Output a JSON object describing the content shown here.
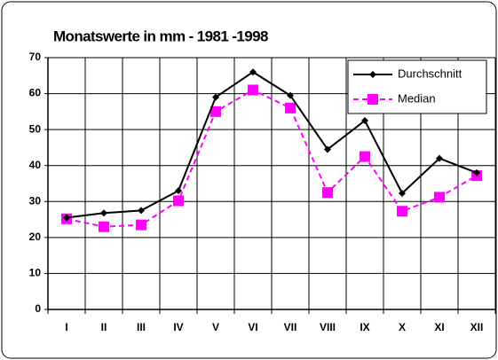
{
  "chart_data": {
    "type": "line",
    "title": "Monatswerte in mm - 1981 -1998",
    "categories": [
      "I",
      "II",
      "III",
      "IV",
      "V",
      "VI",
      "VII",
      "VIII",
      "IX",
      "X",
      "XI",
      "XII"
    ],
    "series": [
      {
        "name": "Durchschnitt",
        "color": "#000000",
        "marker": "diamond",
        "line_style": "solid",
        "values": [
          25.5,
          26.8,
          27.5,
          33,
          59,
          66,
          59.5,
          44.5,
          52.5,
          32.3,
          42,
          38
        ]
      },
      {
        "name": "Median",
        "color": "#ff00ff",
        "marker": "square",
        "line_style": "dashed",
        "values": [
          25.2,
          23,
          23.5,
          30.2,
          55,
          61,
          56,
          32.5,
          42.5,
          27.3,
          31.2,
          37.2
        ]
      }
    ],
    "ylim": [
      0,
      70
    ],
    "yticks": [
      0,
      10,
      20,
      30,
      40,
      50,
      60,
      70
    ],
    "grid": true,
    "legend": "upper right"
  }
}
